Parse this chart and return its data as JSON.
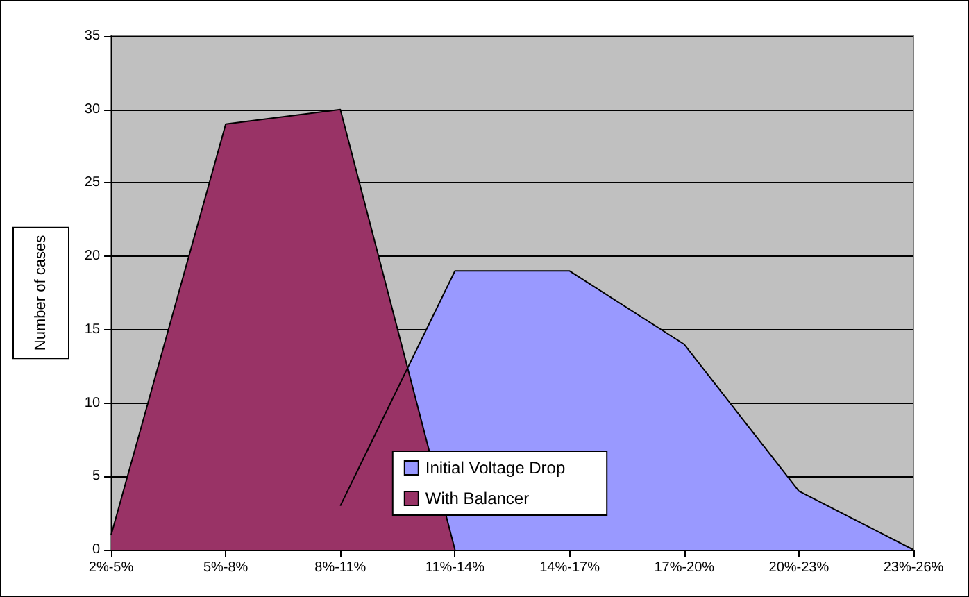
{
  "chart_data": {
    "type": "area",
    "ylabel": "Number of cases",
    "categories": [
      "2%-5%",
      "5%-8%",
      "8%-11%",
      "11%-14%",
      "14%-17%",
      "17%-20%",
      "20%-23%",
      "23%-26%"
    ],
    "series": [
      {
        "name": "Initial Voltage Drop",
        "color": "#9999ff",
        "values": [
          null,
          null,
          3,
          19,
          19,
          14,
          4,
          0
        ]
      },
      {
        "name": "With Balancer",
        "color": "#993366",
        "values": [
          1,
          29,
          30,
          0,
          null,
          null,
          null,
          null
        ]
      }
    ],
    "ylim": [
      0,
      35
    ],
    "yticks": [
      0,
      5,
      10,
      15,
      20,
      25,
      30,
      35
    ],
    "grid": "y",
    "legend": "bottom"
  }
}
